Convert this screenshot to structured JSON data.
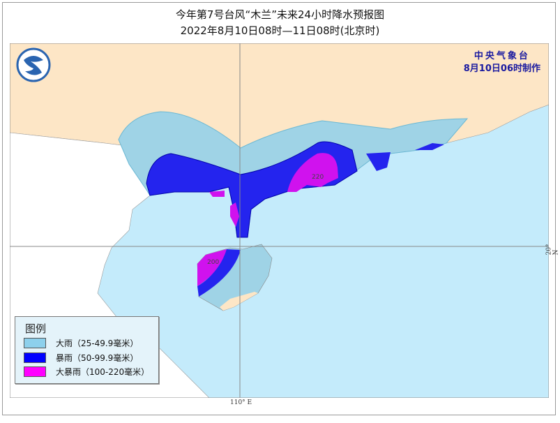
{
  "header": {
    "title": "今年第7号台风“木兰”未来24小时降水预报图",
    "subtitle": "2022年8月10日08时—11日08时(北京时)"
  },
  "agency": {
    "name": "中央气象台",
    "issued": "8月10日06时制作",
    "logo": "cma-logo"
  },
  "map": {
    "labels": {
      "max_north": "220",
      "max_hainan": "200"
    },
    "longitude_label": "110° E",
    "latitude_label": "20° N",
    "colors": {
      "sea": "#c4ebfb",
      "land_china": "#fde6c6",
      "land_other": "#ffffff",
      "heavy_rain": "#9fd3e6",
      "rainstorm": "#2424ee",
      "severe_rainstorm": "#d012ee"
    }
  },
  "legend": {
    "title": "图例",
    "items": [
      {
        "label": "大雨（25-49.9毫米）",
        "color": "#9fd3e6"
      },
      {
        "label": "暴雨（50-99.9毫米）",
        "color": "#0000ff"
      },
      {
        "label": "大暴雨（100-220毫米）",
        "color": "#ff00ff"
      }
    ]
  }
}
